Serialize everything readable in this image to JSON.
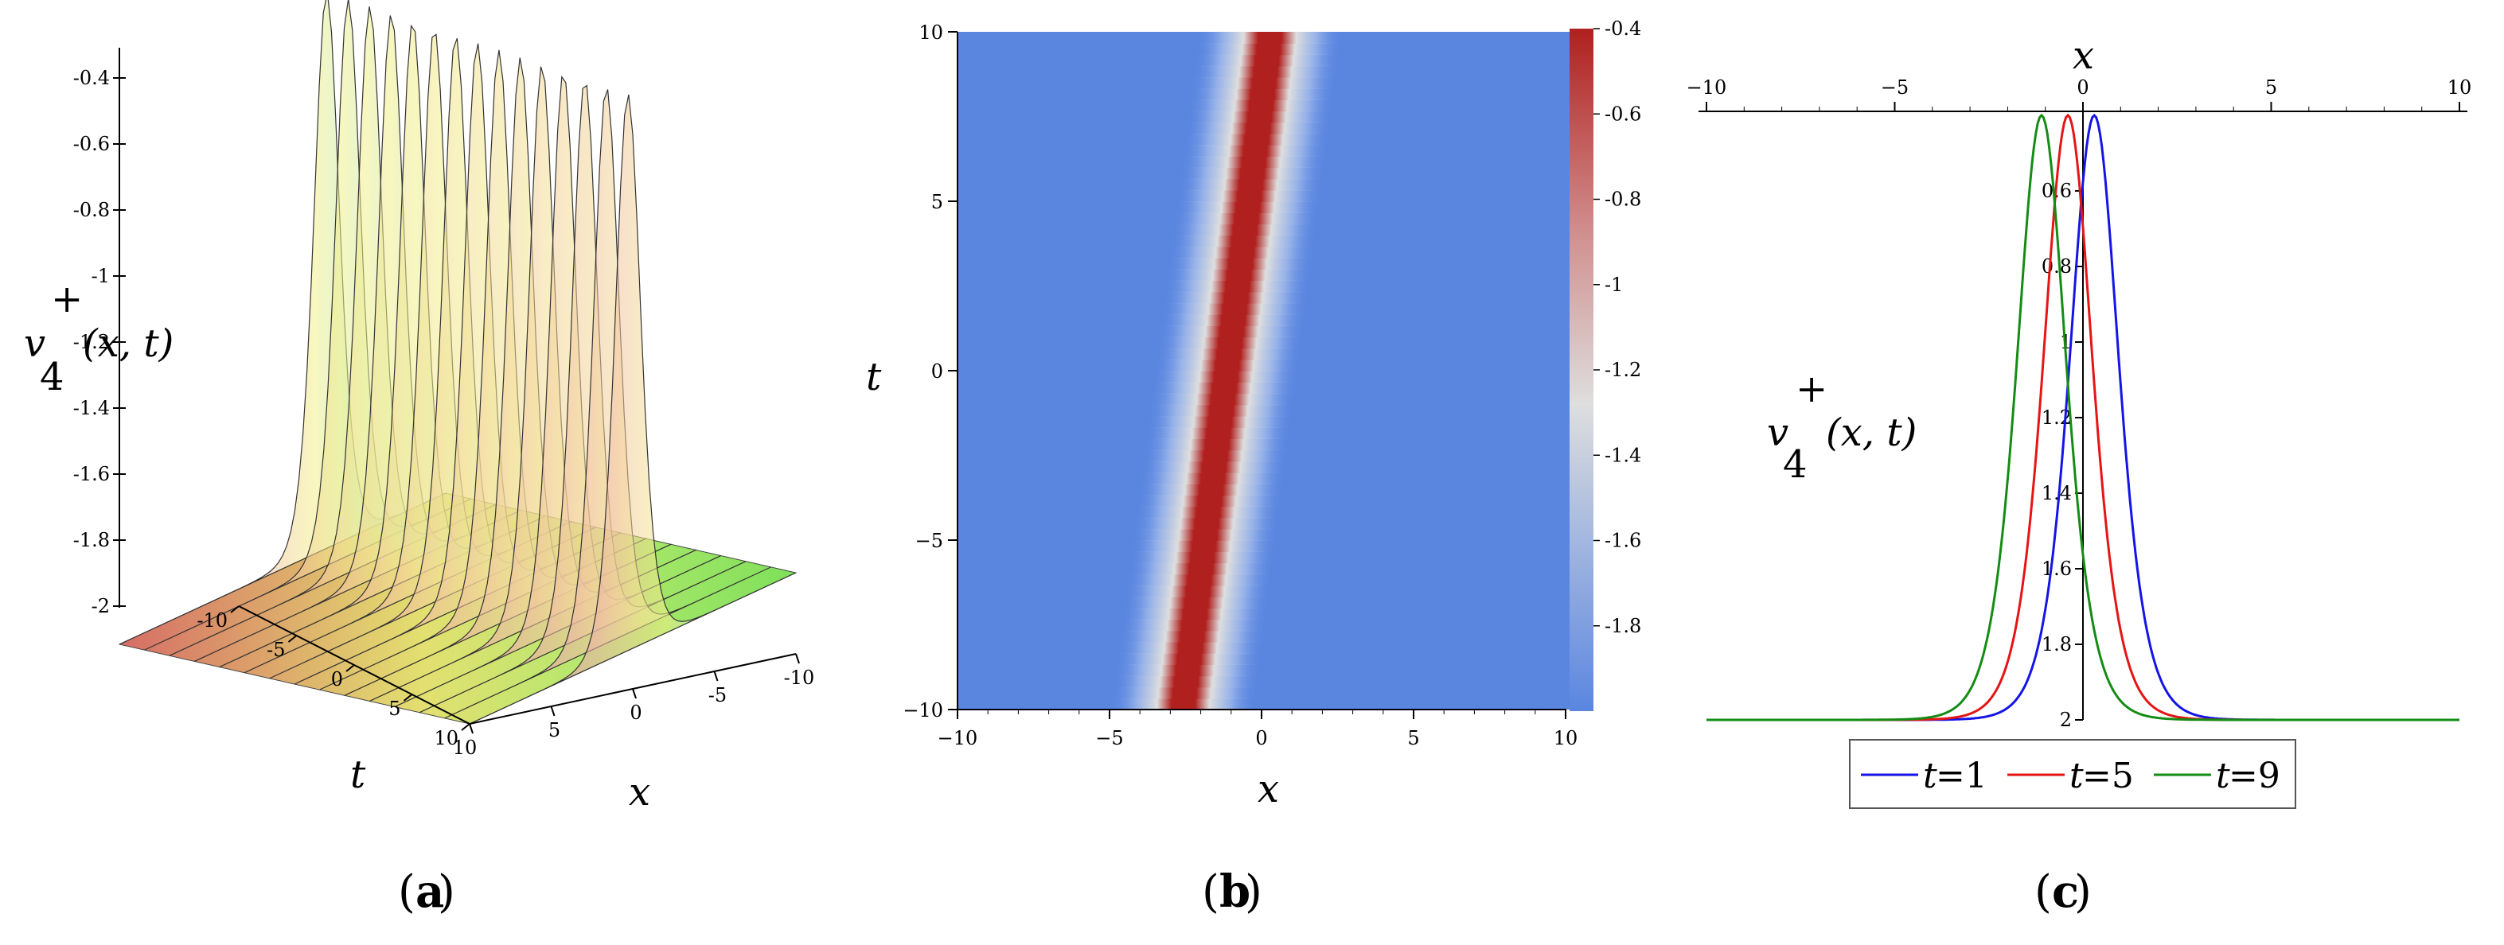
{
  "chart_data": [
    {
      "panel": "(a)",
      "type": "surface3d",
      "zlabel": {
        "base": "v",
        "sub": "4",
        "sup": "+",
        "args": "(x, t)"
      },
      "xlabel": "x",
      "ylabel": "t",
      "zticks": [
        "-0.4",
        "-0.6",
        "-0.8",
        "-1",
        "-1.2",
        "-1.4",
        "-1.6",
        "-1.8",
        "-2"
      ],
      "tticks": [
        "-10",
        "-5",
        "0",
        "5",
        "10"
      ],
      "xticks": [
        "10",
        "5",
        "0",
        "-5",
        "-10"
      ],
      "zlim": [
        -2,
        -0.4
      ],
      "xlim": [
        -10,
        10
      ],
      "tlim": [
        -10,
        10
      ],
      "colors": [
        "#b76cf0",
        "#f2a4b2",
        "#f2f08a",
        "#8cf07a",
        "#7fe6f0"
      ]
    },
    {
      "panel": "(b)",
      "type": "heatmap",
      "xlabel": "x",
      "ylabel": "t",
      "xticks": [
        "−10",
        "−5",
        "0",
        "5",
        "10"
      ],
      "yticks": [
        "10",
        "5",
        "0",
        "−5",
        "−10"
      ],
      "xlim": [
        -10,
        10
      ],
      "ylim": [
        -10,
        10
      ],
      "colorbar_ticks": [
        "-0.4",
        "-0.6",
        "-0.8",
        "-1",
        "-1.2",
        "-1.4",
        "-1.6",
        "-1.8"
      ],
      "colorbar_range": [
        -2,
        -0.4
      ],
      "ridge": {
        "x_at_t_minus10": -2.6,
        "x_at_t_10": 0.3
      },
      "colors": {
        "low": "#5a86e0",
        "mid": "#dedede",
        "high": "#b0201e"
      }
    },
    {
      "panel": "(c)",
      "type": "line",
      "xlabel": "x",
      "ylabel": {
        "base": "v",
        "sub": "4",
        "sup": "+",
        "args": "(x, t)"
      },
      "xticks": [
        "−10",
        "−5",
        "0",
        "5",
        "10"
      ],
      "yticks": [
        "0.6",
        "0.8",
        "1",
        "1.2",
        "1.4",
        "1.6",
        "1.8",
        "2"
      ],
      "xlim": [
        -10,
        10
      ],
      "ylim": [
        -2,
        -0.4
      ],
      "series": [
        {
          "name": "t=1",
          "label_var": "t",
          "label_val": "=1",
          "color": "#1414e6",
          "center": 0.3
        },
        {
          "name": "t=5",
          "label_var": "t",
          "label_val": "=5",
          "color": "#e61414",
          "center": -0.4
        },
        {
          "name": "t=9",
          "label_var": "t",
          "label_val": "=9",
          "color": "#148c14",
          "center": -1.1
        }
      ],
      "legend": "bottom"
    }
  ],
  "sublabels": {
    "a": "a",
    "b": "b",
    "c": "c"
  }
}
